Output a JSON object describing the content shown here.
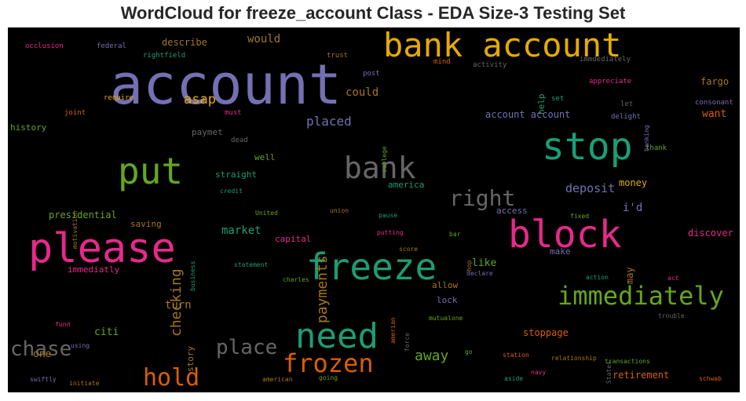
{
  "title": "WordCloud for freeze_account Class - EDA Size-3 Testing Set",
  "words": [
    {
      "text": "account",
      "color": "#7570b3"
    },
    {
      "text": "bank account",
      "color": "#e6ab02"
    },
    {
      "text": "stop",
      "color": "#1b9e77"
    },
    {
      "text": "please",
      "color": "#e7298a"
    },
    {
      "text": "block",
      "color": "#e7298a"
    },
    {
      "text": "freeze",
      "color": "#1b9e77"
    },
    {
      "text": "put",
      "color": "#66a61e"
    },
    {
      "text": "bank",
      "color": "#666666"
    },
    {
      "text": "need",
      "color": "#1b9e77"
    },
    {
      "text": "immediately",
      "color": "#66a61e"
    },
    {
      "text": "frozen",
      "color": "#d95f02"
    },
    {
      "text": "hold",
      "color": "#d95f02"
    },
    {
      "text": "right",
      "color": "#666666"
    },
    {
      "text": "place",
      "color": "#666666"
    },
    {
      "text": "chase",
      "color": "#666666"
    },
    {
      "text": "checking",
      "color": "#a6761d"
    },
    {
      "text": "payments",
      "color": "#a6761d"
    },
    {
      "text": "away",
      "color": "#66a61e"
    },
    {
      "text": "asap",
      "color": "#e6ab02"
    },
    {
      "text": "placed",
      "color": "#7570b3"
    },
    {
      "text": "deposit",
      "color": "#7570b3"
    },
    {
      "text": "market",
      "color": "#1b9e77"
    },
    {
      "text": "turn",
      "color": "#a6761d"
    },
    {
      "text": "could",
      "color": "#a6761d"
    },
    {
      "text": "would",
      "color": "#a6761d"
    },
    {
      "text": "describe",
      "color": "#a6761d"
    },
    {
      "text": "account account",
      "color": "#7570b3"
    },
    {
      "text": "want",
      "color": "#d95f02"
    },
    {
      "text": "fargo",
      "color": "#a6761d"
    },
    {
      "text": "i'd",
      "color": "#7570b3"
    },
    {
      "text": "money",
      "color": "#e6ab02"
    },
    {
      "text": "access",
      "color": "#7570b3"
    },
    {
      "text": "discover",
      "color": "#e7298a"
    },
    {
      "text": "like",
      "color": "#66a61e"
    },
    {
      "text": "make",
      "color": "#7570b3"
    },
    {
      "text": "may",
      "color": "#a6761d"
    },
    {
      "text": "citi",
      "color": "#66a61e"
    },
    {
      "text": "one",
      "color": "#a6761d"
    },
    {
      "text": "story",
      "color": "#a6761d"
    },
    {
      "text": "stoppage",
      "color": "#d95f02"
    },
    {
      "text": "retirement",
      "color": "#d95f02"
    },
    {
      "text": "presidential",
      "color": "#66a61e"
    },
    {
      "text": "saving",
      "color": "#a6761d"
    },
    {
      "text": "capital",
      "color": "#e7298a"
    },
    {
      "text": "history",
      "color": "#66a61e"
    },
    {
      "text": "immediatly",
      "color": "#e7298a"
    },
    {
      "text": "straight",
      "color": "#1b9e77"
    },
    {
      "text": "paymet",
      "color": "#666666"
    },
    {
      "text": "well",
      "color": "#66a61e"
    },
    {
      "text": "america",
      "color": "#1b9e77"
    },
    {
      "text": "allow",
      "color": "#a6761d"
    },
    {
      "text": "lock",
      "color": "#7570b3"
    },
    {
      "text": "help",
      "color": "#1b9e77"
    },
    {
      "text": "set",
      "color": "#1b9e77"
    },
    {
      "text": "let",
      "color": "#666666"
    },
    {
      "text": "thank",
      "color": "#66a61e"
    },
    {
      "text": "delight",
      "color": "#7570b3"
    },
    {
      "text": "consonant",
      "color": "#7570b3"
    },
    {
      "text": "appreciate",
      "color": "#e7298a"
    },
    {
      "text": "immdediately",
      "color": "#666666"
    },
    {
      "text": "activity",
      "color": "#666666"
    },
    {
      "text": "mind",
      "color": "#d95f02"
    },
    {
      "text": "post",
      "color": "#7570b3"
    },
    {
      "text": "trust",
      "color": "#a6761d"
    },
    {
      "text": "rightfield",
      "color": "#1b9e77"
    },
    {
      "text": "federal",
      "color": "#7570b3"
    },
    {
      "text": "occlusion",
      "color": "#e7298a"
    },
    {
      "text": "require",
      "color": "#e6ab02"
    },
    {
      "text": "joint",
      "color": "#d95f02"
    },
    {
      "text": "must",
      "color": "#e7298a"
    },
    {
      "text": "dead",
      "color": "#666666"
    },
    {
      "text": "college",
      "color": "#66a61e"
    },
    {
      "text": "banking",
      "color": "#7570b3"
    },
    {
      "text": "motivation",
      "color": "#a6761d"
    },
    {
      "text": "credit",
      "color": "#1b9e77"
    },
    {
      "text": "business",
      "color": "#1b9e77"
    },
    {
      "text": "United",
      "color": "#66a61e"
    },
    {
      "text": "union",
      "color": "#a6761d"
    },
    {
      "text": "pause",
      "color": "#1b9e77"
    },
    {
      "text": "putting",
      "color": "#e7298a"
    },
    {
      "text": "bar",
      "color": "#66a61e"
    },
    {
      "text": "hop",
      "color": "#a6761d"
    },
    {
      "text": "fixed",
      "color": "#66a61e"
    },
    {
      "text": "score",
      "color": "#a6761d"
    },
    {
      "text": "statement",
      "color": "#1b9e77"
    },
    {
      "text": "charles",
      "color": "#66a61e"
    },
    {
      "text": "declare",
      "color": "#7570b3"
    },
    {
      "text": "action",
      "color": "#1b9e77"
    },
    {
      "text": "act",
      "color": "#e7298a"
    },
    {
      "text": "amerian",
      "color": "#d95f02"
    },
    {
      "text": "force",
      "color": "#666666"
    },
    {
      "text": "mutualone",
      "color": "#66a61e"
    },
    {
      "text": "trouble",
      "color": "#666666"
    },
    {
      "text": "fund",
      "color": "#e7298a"
    },
    {
      "text": "using",
      "color": "#7570b3"
    },
    {
      "text": "swiftly",
      "color": "#7570b3"
    },
    {
      "text": "initiate",
      "color": "#a6761d"
    },
    {
      "text": "american",
      "color": "#a6761d"
    },
    {
      "text": "going",
      "color": "#66a61e"
    },
    {
      "text": "go",
      "color": "#66a61e"
    },
    {
      "text": "station",
      "color": "#d95f02"
    },
    {
      "text": "navy",
      "color": "#e7298a"
    },
    {
      "text": "aside",
      "color": "#1b9e77"
    },
    {
      "text": "relationship",
      "color": "#a6761d"
    },
    {
      "text": "States",
      "color": "#666666"
    },
    {
      "text": "transactions",
      "color": "#66a61e"
    },
    {
      "text": "schwab",
      "color": "#d95f02"
    }
  ]
}
